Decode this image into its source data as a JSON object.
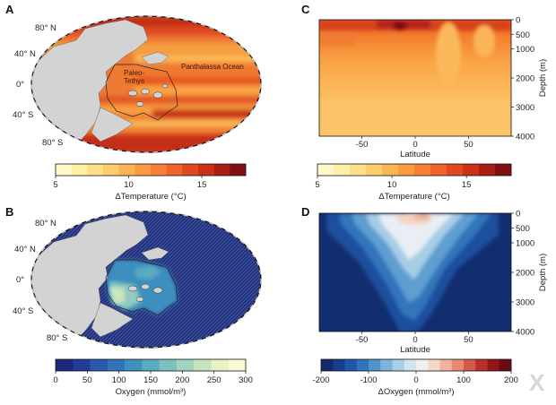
{
  "figure": {
    "panels": {
      "A": {
        "letter": "A",
        "lat_labels": [
          "80° N",
          "40° N",
          "0°",
          "40° S",
          "80° S"
        ],
        "region_labels": [
          "Paleo-",
          "Tethys",
          "Panthalassa Ocean"
        ],
        "colorbar": {
          "label": "ΔTemperature (°C)",
          "ticks": [
            "5",
            "10",
            "15"
          ],
          "range": [
            5,
            18
          ],
          "colors": [
            "#fff8c8",
            "#ffefa6",
            "#ffe08a",
            "#fdcc6b",
            "#fbb454",
            "#f99a42",
            "#f57f35",
            "#ee632a",
            "#e04820",
            "#c93219",
            "#a81e14",
            "#801010"
          ]
        }
      },
      "B": {
        "letter": "B",
        "lat_labels": [
          "80° N",
          "40° N",
          "0°",
          "40° S",
          "80° S"
        ],
        "colorbar": {
          "label": "Oxygen (mmol/m³)",
          "ticks": [
            "0",
            "50",
            "100",
            "150",
            "200",
            "250",
            "300"
          ],
          "range": [
            0,
            300
          ],
          "colors": [
            "#1c2a7c",
            "#233c95",
            "#2b58ad",
            "#3174b9",
            "#3e90bf",
            "#5aaac1",
            "#7cc1c0",
            "#a3d4bf",
            "#c8e4be",
            "#e8f2c4",
            "#fafad6"
          ]
        }
      },
      "C": {
        "letter": "C",
        "x_ticks": [
          "-50",
          "0",
          "50"
        ],
        "x_label": "Latitude",
        "y_ticks": [
          "0",
          "500",
          "1000",
          "2000",
          "3000",
          "4000"
        ],
        "y_label": "Depth (m)",
        "colorbar": {
          "label": "ΔTemperature (°C)",
          "ticks": [
            "5",
            "10",
            "15"
          ],
          "range": [
            5,
            18
          ],
          "colors": [
            "#fff8c8",
            "#ffefa6",
            "#ffe08a",
            "#fdcc6b",
            "#fbb454",
            "#f99a42",
            "#f57f35",
            "#ee632a",
            "#e04820",
            "#c93219",
            "#a81e14",
            "#801010"
          ]
        }
      },
      "D": {
        "letter": "D",
        "x_ticks": [
          "-50",
          "0",
          "50"
        ],
        "x_label": "Latitude",
        "y_ticks": [
          "0",
          "500",
          "1000",
          "2000",
          "3000",
          "4000"
        ],
        "y_label": "Depth (m)",
        "colorbar": {
          "label": "ΔOxygen (mmol/m³)",
          "ticks": [
            "-200",
            "-100",
            "0",
            "100",
            "200"
          ],
          "range": [
            -200,
            200
          ],
          "colors": [
            "#102a6a",
            "#173c8a",
            "#1f56a8",
            "#3174bb",
            "#4f94cb",
            "#7cb4da",
            "#a9cfe6",
            "#d1e4f0",
            "#f0f0f0",
            "#f7d7c8",
            "#f1b49a",
            "#e58a6e",
            "#d25b4a",
            "#b8302d",
            "#921519",
            "#6a0b14"
          ]
        }
      }
    },
    "watermark": "X"
  }
}
